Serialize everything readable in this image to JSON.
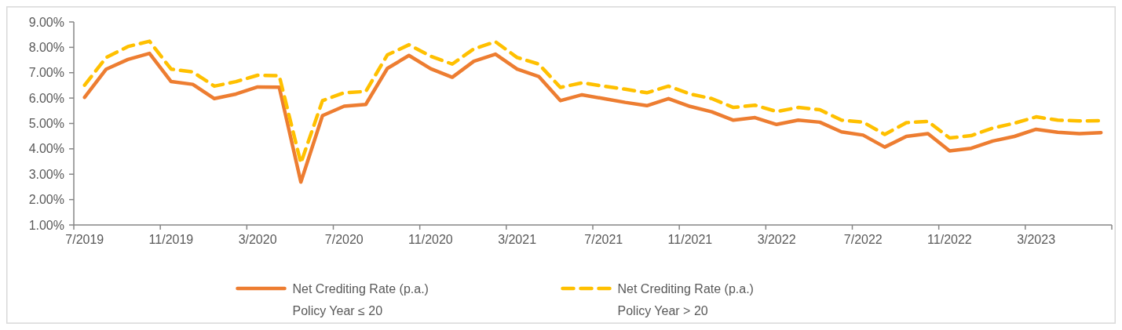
{
  "chart_data": {
    "type": "line",
    "categories": [
      "7/2019",
      null,
      null,
      null,
      "11/2019",
      null,
      null,
      null,
      "3/2020",
      null,
      null,
      null,
      "7/2020",
      null,
      null,
      null,
      "11/2020",
      null,
      null,
      null,
      "3/2021",
      null,
      null,
      null,
      "7/2021",
      null,
      null,
      null,
      "11/2021",
      null,
      null,
      null,
      "3/2022",
      null,
      null,
      null,
      "7/2022",
      null,
      null,
      null,
      "11/2022",
      null,
      null,
      null,
      "3/2023",
      null,
      null,
      null
    ],
    "series": [
      {
        "name": "Net Crediting Rate (p.a.)\nPolicy Year ≤ 20",
        "color": "#ed7d31",
        "line_style": "solid",
        "values": [
          6.03,
          7.14,
          7.52,
          7.76,
          6.65,
          6.54,
          5.98,
          6.16,
          6.44,
          6.43,
          2.69,
          5.31,
          5.68,
          5.75,
          7.17,
          7.68,
          7.16,
          6.82,
          7.45,
          7.73,
          7.14,
          6.85,
          5.9,
          6.13,
          5.98,
          5.83,
          5.7,
          5.98,
          5.67,
          5.46,
          5.13,
          5.23,
          4.96,
          5.13,
          5.05,
          4.67,
          4.54,
          4.07,
          4.49,
          4.6,
          3.92,
          4.02,
          4.31,
          4.49,
          4.77,
          4.65,
          4.6,
          4.64
        ]
      },
      {
        "name": "Net Crediting Rate (p.a.)\nPolicy Year > 20",
        "color": "#ffc000",
        "line_style": "dashed",
        "values": [
          6.51,
          7.6,
          8.03,
          8.24,
          7.14,
          7.03,
          6.47,
          6.65,
          6.9,
          6.88,
          3.44,
          5.9,
          6.21,
          6.26,
          7.7,
          8.1,
          7.65,
          7.34,
          7.94,
          8.22,
          7.6,
          7.34,
          6.42,
          6.6,
          6.47,
          6.35,
          6.21,
          6.47,
          6.16,
          5.98,
          5.63,
          5.72,
          5.47,
          5.63,
          5.54,
          5.13,
          5.05,
          4.57,
          5.03,
          5.08,
          4.43,
          4.52,
          4.82,
          5.01,
          5.26,
          5.13,
          5.1,
          5.11
        ]
      }
    ],
    "ylim": [
      1,
      9
    ],
    "yticks": [
      {
        "value": 1,
        "label": "1.00%"
      },
      {
        "value": 2,
        "label": "2.00%"
      },
      {
        "value": 3,
        "label": "3.00%"
      },
      {
        "value": 4,
        "label": "4.00%"
      },
      {
        "value": 5,
        "label": "5.00%"
      },
      {
        "value": 6,
        "label": "6.00%"
      },
      {
        "value": 7,
        "label": "7.00%"
      },
      {
        "value": 8,
        "label": "8.00%"
      },
      {
        "value": 9,
        "label": "9.00%"
      }
    ],
    "grid": false,
    "legend": "bottom"
  }
}
